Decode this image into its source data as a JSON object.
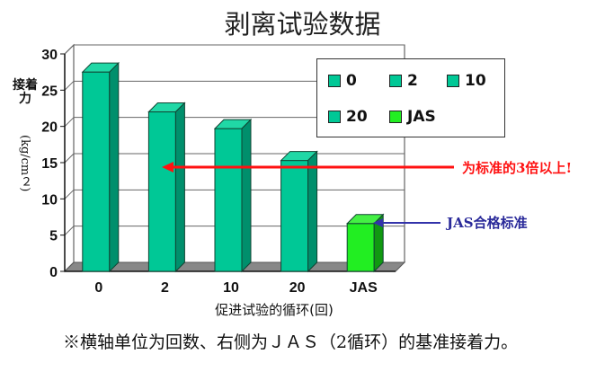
{
  "chart_data": {
    "type": "bar",
    "title": "剥离试验数据",
    "categories": [
      "0",
      "2",
      "10",
      "20",
      "JAS"
    ],
    "values": [
      27.5,
      22,
      19.7,
      15.3,
      6.6
    ],
    "ylim": [
      0,
      30
    ],
    "yticks": [
      0,
      5,
      10,
      15,
      20,
      25,
      30
    ],
    "ylabel": "接着力",
    "ylabel_unit": "(kg/cm２)",
    "xlabel": "促进试验的循环(回)",
    "grid": true,
    "legend_position": "top-right",
    "legend": [
      "0",
      "2",
      "10",
      "20",
      "JAS"
    ],
    "annotations": [
      {
        "text": "为标准的3倍以上!",
        "color": "#ff1111"
      },
      {
        "text": "JAS合格标准",
        "color": "#2a2a9a"
      }
    ],
    "colors": {
      "bar": "#00c896",
      "jas": "#22ee22",
      "red_arrow": "#ff1111",
      "blue_arrow": "#3333aa"
    }
  },
  "footnote": "※横轴单位为回数、右侧为ＪＡＳ（2循环）的基准接着力。"
}
